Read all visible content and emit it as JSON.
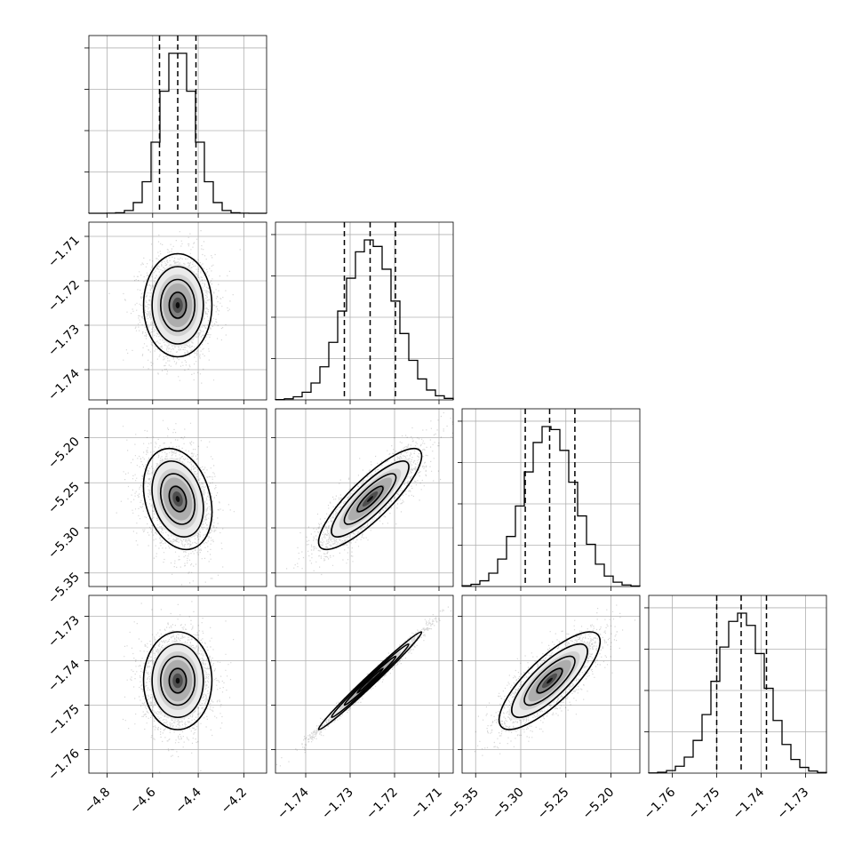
{
  "chart_data": {
    "type": "corner",
    "parameters": [
      {
        "mean": -4.49,
        "sigma": 0.075,
        "range": [
          -4.88,
          -4.1
        ],
        "ticks": [
          -4.8,
          -4.6,
          -4.4,
          -4.2
        ],
        "tick_labels": [
          "−4.8",
          "−4.6",
          "−4.4",
          "−4.2"
        ],
        "quantiles": [
          -4.57,
          -4.49,
          -4.41
        ]
      },
      {
        "mean": -1.7255,
        "sigma": 0.0058,
        "range": [
          -1.7468,
          -1.7068
        ],
        "ticks": [
          -1.74,
          -1.73,
          -1.72,
          -1.71
        ],
        "tick_labels": [
          "−1.74",
          "−1.73",
          "−1.72",
          "−1.71"
        ],
        "quantiles": [
          -1.7313,
          -1.7255,
          -1.7198
        ]
      },
      {
        "mean": -5.268,
        "sigma": 0.028,
        "range": [
          -5.365,
          -5.168
        ],
        "ticks": [
          -5.35,
          -5.3,
          -5.25,
          -5.2
        ],
        "tick_labels": [
          "−5.35",
          "−5.30",
          "−5.25",
          "−5.20"
        ],
        "quantiles": [
          -5.295,
          -5.268,
          -5.24
        ]
      },
      {
        "mean": -1.7445,
        "sigma": 0.0055,
        "range": [
          -1.7653,
          -1.7253
        ],
        "ticks": [
          -1.76,
          -1.75,
          -1.74,
          -1.73
        ],
        "tick_labels": [
          "−1.76",
          "−1.75",
          "−1.74",
          "−1.73"
        ],
        "quantiles": [
          -1.75,
          -1.7445,
          -1.7388
        ]
      }
    ],
    "correlations": [
      [
        1.0,
        0.0,
        -0.25,
        0.0
      ],
      [
        0.0,
        1.0,
        0.85,
        0.99
      ],
      [
        -0.25,
        0.85,
        1.0,
        0.8
      ],
      [
        0.0,
        0.99,
        0.8,
        1.0
      ]
    ],
    "histogram_bins": 20,
    "contour_levels_sigma": [
      0.5,
      1.0,
      1.5,
      2.0
    ],
    "samples_per_pair": 2500,
    "colors": {
      "hist": "#000000",
      "contour": "#000000",
      "points": "#000000",
      "grid": "#b0b0b0"
    }
  }
}
